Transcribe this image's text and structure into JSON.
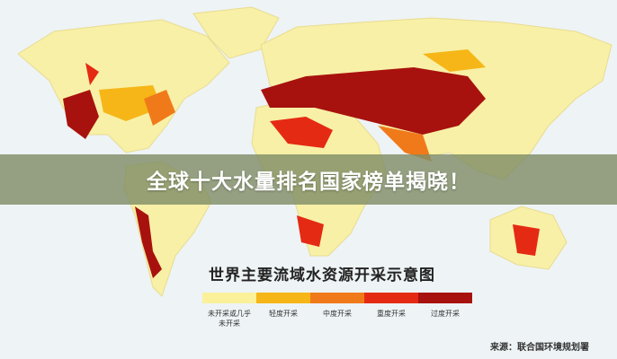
{
  "banner": {
    "title": "全球十大水量排名国家榜单揭晓！"
  },
  "map": {
    "legend_title": "世界主要流域水资源开采示意图",
    "legend": [
      {
        "label": "未开采或几乎未开采",
        "color": "#faf19a"
      },
      {
        "label": "轻度开采",
        "color": "#f6b617"
      },
      {
        "label": "中度开采",
        "color": "#f07a1a"
      },
      {
        "label": "重度开采",
        "color": "#e52a14"
      },
      {
        "label": "过度开采",
        "color": "#a8120e"
      }
    ],
    "land_color": "#f8f0a6",
    "source": "来源：联合国环境规划署"
  }
}
